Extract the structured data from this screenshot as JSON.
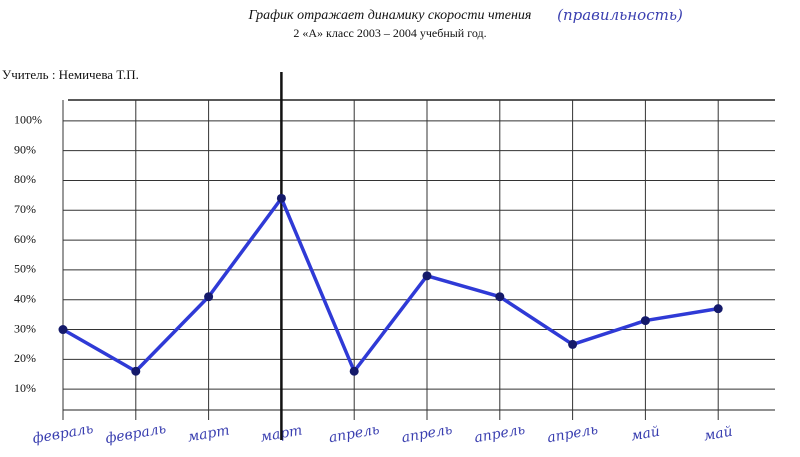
{
  "chart_data": {
    "type": "line",
    "title": "График отражает динамику скорости чтения",
    "annotation": "(правильность)",
    "subtitle": "2 «А» класс 2003 – 2004 учебный год.",
    "teacher": "Учитель : Немичева Т.П.",
    "categories": [
      "февраль",
      "февраль",
      "март",
      "март",
      "апрель",
      "апрель",
      "апрель",
      "апрель",
      "май",
      "май"
    ],
    "values": [
      30,
      16,
      41,
      74,
      16,
      48,
      41,
      25,
      33,
      37
    ],
    "color": "#2f3ad6",
    "ylim": [
      3,
      107
    ],
    "yticks": [
      {
        "value": 10,
        "label": "10%"
      },
      {
        "value": 20,
        "label": "20%"
      },
      {
        "value": 30,
        "label": "30%"
      },
      {
        "value": 40,
        "label": "40%"
      },
      {
        "value": 50,
        "label": "50%"
      },
      {
        "value": 60,
        "label": "60%"
      },
      {
        "value": 70,
        "label": "70%"
      },
      {
        "value": 80,
        "label": "80%"
      },
      {
        "value": 90,
        "label": "90%"
      },
      {
        "value": 100,
        "label": "100%"
      }
    ],
    "grid": true
  }
}
